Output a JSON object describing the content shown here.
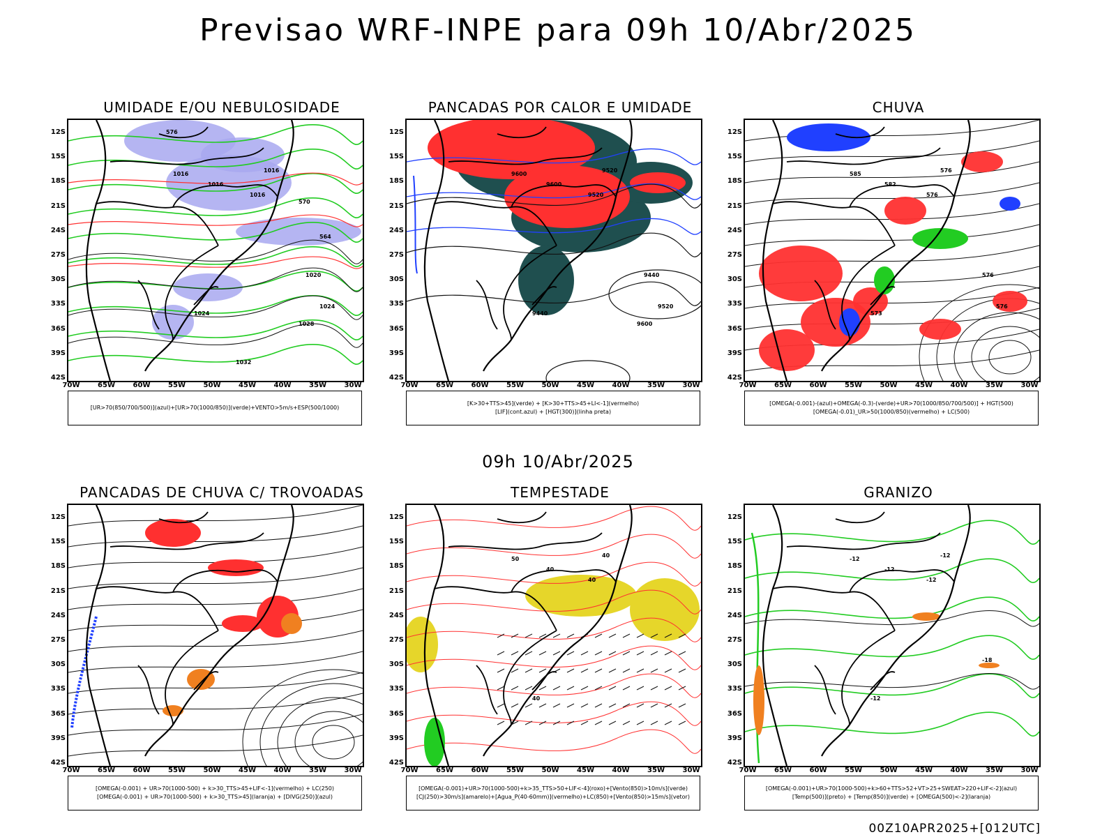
{
  "title": "Previsao WRF-INPE  para 09h 10/Abr/2025",
  "subtitle": "09h 10/Abr/2025",
  "footer": "00Z10APR2025+[012UTC]",
  "axes": {
    "lat_labels": [
      "12S",
      "15S",
      "18S",
      "21S",
      "24S",
      "27S",
      "30S",
      "33S",
      "36S",
      "39S",
      "42S"
    ],
    "lon_labels": [
      "70W",
      "65W",
      "60W",
      "55W",
      "50W",
      "45W",
      "40W",
      "35W",
      "30W"
    ]
  },
  "colors": {
    "blue_area": "#a8a8f0",
    "green": "#22cc22",
    "red": "#ff3030",
    "dark_teal": "#1f4f4f",
    "blue": "#2040ff",
    "orange": "#f08020",
    "yellow": "#e6d62a"
  },
  "panels": [
    {
      "title": "UMIDADE E/OU NEBULOSIDADE",
      "legend": [
        "[UR>70(850/700/500)](azul)+[UR>70(1000/850)](verde)+VENTO>5m/s+ESP(500/1000)"
      ],
      "labels": [
        "1016",
        "1016",
        "1016",
        "1016",
        "1024",
        "1020",
        "1024",
        "1028",
        "1032",
        "576",
        "570",
        "564"
      ]
    },
    {
      "title": "PANCADAS POR CALOR E UMIDADE",
      "legend": [
        "[K>30+TTS>45](verde) + [K>30+TTS>45+LI<-1](vermelho)",
        "[LIF](cont.azul) + [HGT(300)](linha preta)"
      ],
      "labels": [
        "9600",
        "9600",
        "9520",
        "9520",
        "9440",
        "9440",
        "9520",
        "9600"
      ]
    },
    {
      "title": "CHUVA",
      "legend": [
        "[OMEGA(-0.001)-(azul)+OMEGA(-0.3)-(verde)+UR>70(1000/850/700/500)] + HGT(500)",
        "[OMEGA(-0.01)_UR>50(1000/850)(vermelho) + LC(500)"
      ],
      "labels": [
        "585",
        "582",
        "576",
        "576",
        "573",
        "576",
        "576"
      ]
    },
    {
      "title": "PANCADAS DE CHUVA C/ TROVOADAS",
      "legend": [
        "[OMEGA(-0.001) + UR>70(1000-500) + k>30_TTS>45+LIF<-1](vermelho) + LC(250)",
        "[OMEGA(-0.001) + UR>70(1000-500) + k>30_TTS>45](laranja) + [DIVG(250)](azul)"
      ],
      "labels": []
    },
    {
      "title": "TEMPESTADE",
      "legend": [
        "[OMEGA(-0.001)+UR>70(1000-500)+k>35_TTS>50+LIF<-4](roxo)+[Vento(850)>10m/s](verde)",
        "[CJ(250)>30m/s](amarelo)+[Agua_P(40-60mm)](vermelho)+LC(850)+[Vento(850)>15m/s](vetor)"
      ],
      "labels": [
        "50",
        "40",
        "40",
        "40",
        "40"
      ]
    },
    {
      "title": "GRANIZO",
      "legend": [
        "[OMEGA(-0.001)+UR>70(1000-500)+k>60+TTS>52+VT>25+SWEAT>220+LIF<-2](azul)",
        "[Temp(500)](preto) + [Temp(850)](verde) + [OMEGA(500)<-2](laranja)"
      ],
      "labels": [
        "-12",
        "-12",
        "-12",
        "-12",
        "-12",
        "-18"
      ]
    }
  ]
}
